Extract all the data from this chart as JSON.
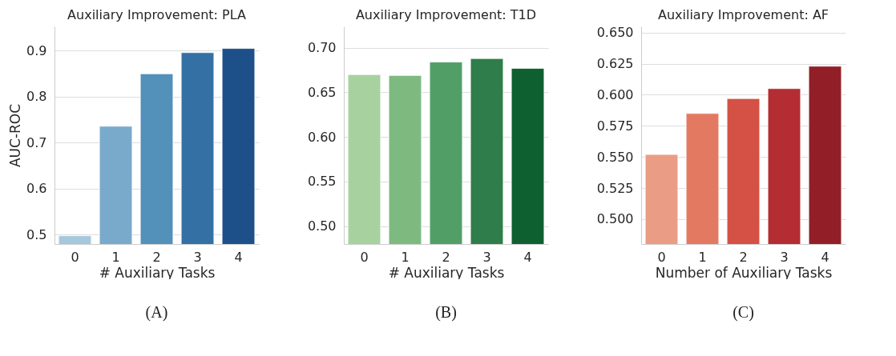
{
  "chart_data": [
    {
      "type": "bar",
      "title": "Auxiliary Improvement: PLA",
      "xlabel": "# Auxiliary Tasks",
      "ylabel": "AUC-ROC",
      "categories": [
        "0",
        "1",
        "2",
        "3",
        "4"
      ],
      "values": [
        0.498,
        0.736,
        0.85,
        0.896,
        0.905
      ],
      "colors": [
        "#a6c8dc",
        "#79aacb",
        "#5390ba",
        "#3470a4",
        "#1d5089"
      ],
      "ylim": [
        0.48,
        0.953
      ],
      "yticks": [
        0.5,
        0.6,
        0.7,
        0.8,
        0.9
      ],
      "grid": "y",
      "annotations": [
        "(A)"
      ]
    },
    {
      "type": "bar",
      "title": "Auxiliary Improvement: T1D",
      "xlabel": "# Auxiliary Tasks",
      "categories": [
        "0",
        "1",
        "2",
        "3",
        "4"
      ],
      "values": [
        0.67,
        0.669,
        0.684,
        0.688,
        0.677
      ],
      "colors": [
        "#a7d2a0",
        "#7eba80",
        "#519f66",
        "#2f7d4a",
        "#0f6030"
      ],
      "ylim": [
        0.48,
        0.724
      ],
      "yticks": [
        {
          "value": 0.5,
          "label": "0.50"
        },
        {
          "value": 0.55,
          "label": "0.55"
        },
        {
          "value": 0.6,
          "label": "0.60"
        },
        {
          "value": 0.65,
          "label": "0.65"
        },
        {
          "value": 0.7,
          "label": "0.70"
        }
      ],
      "grid": "y",
      "annotations": [
        "(B)"
      ]
    },
    {
      "type": "bar",
      "title": "Auxiliary Improvement: AF",
      "xlabel": "Number of Auxiliary Tasks",
      "categories": [
        "0",
        "1",
        "2",
        "3",
        "4"
      ],
      "values": [
        0.552,
        0.585,
        0.597,
        0.605,
        0.623
      ],
      "colors": [
        "#eb9c85",
        "#e47962",
        "#d55045",
        "#b42d33",
        "#921f27"
      ],
      "ylim": [
        0.48,
        0.655
      ],
      "yticks": [
        {
          "value": 0.5,
          "label": "0.500"
        },
        {
          "value": 0.525,
          "label": "0.525"
        },
        {
          "value": 0.55,
          "label": "0.550"
        },
        {
          "value": 0.575,
          "label": "0.575"
        },
        {
          "value": 0.6,
          "label": "0.600"
        },
        {
          "value": 0.625,
          "label": "0.625"
        },
        {
          "value": 0.65,
          "label": "0.650"
        }
      ],
      "grid": "y",
      "annotations": [
        "(C)"
      ]
    }
  ]
}
